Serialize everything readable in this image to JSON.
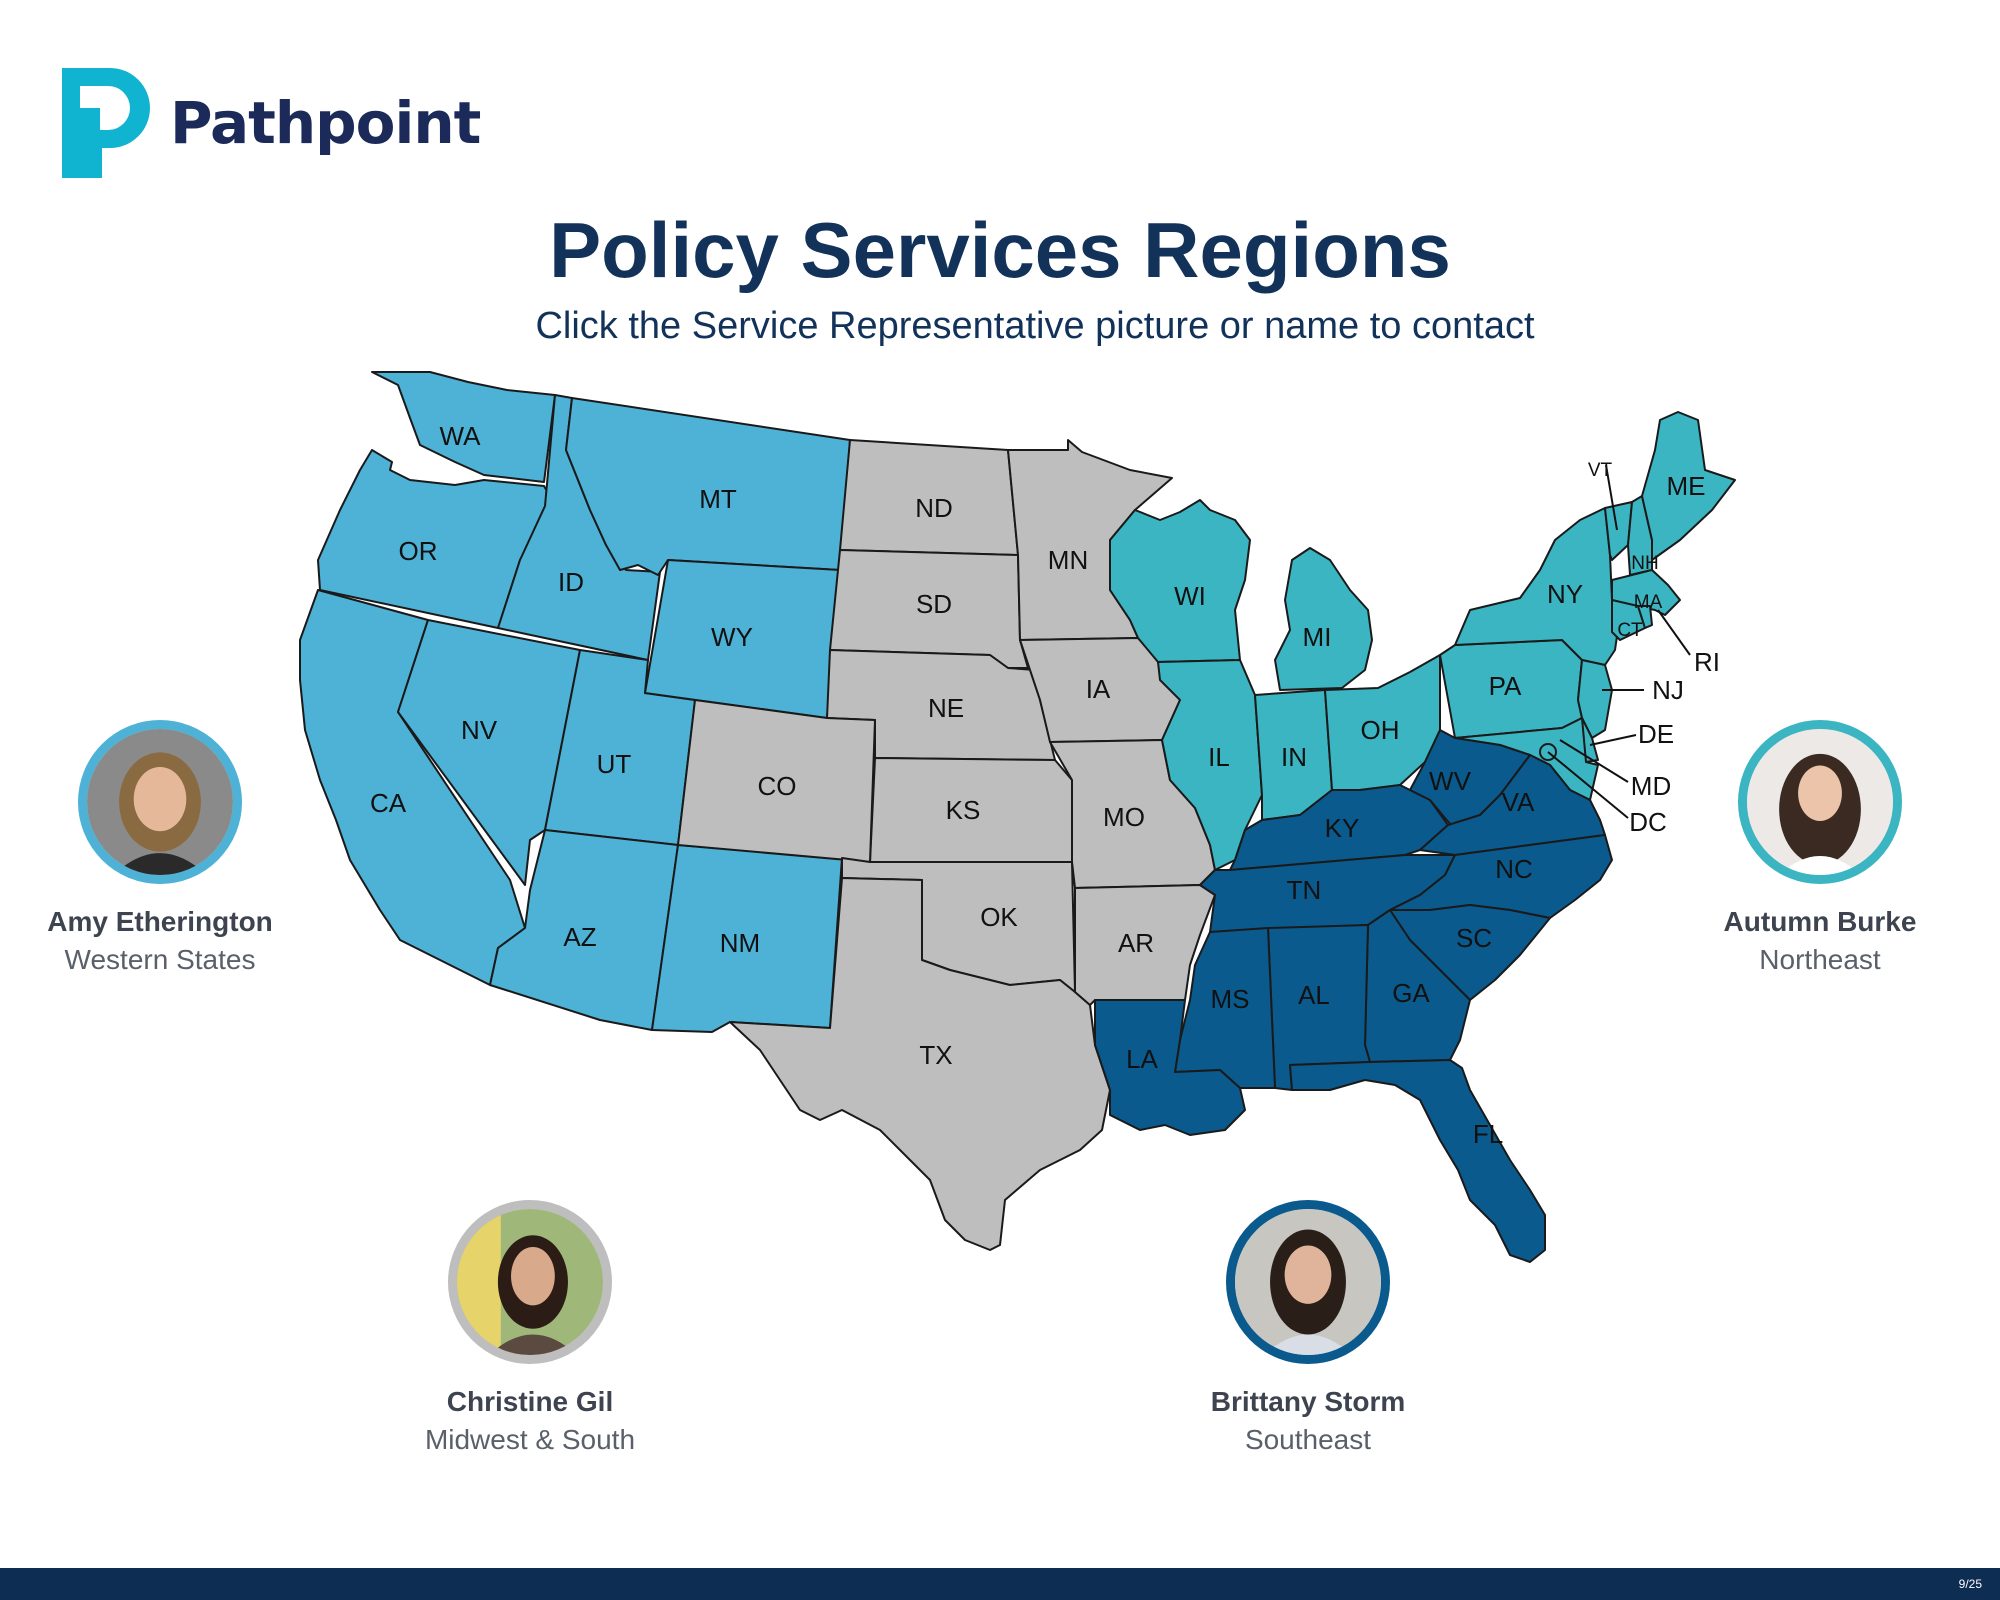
{
  "brand": {
    "name": "Pathpoint",
    "colors": {
      "primary": "#1c2a5a",
      "accent": "#10b4d0"
    }
  },
  "header": {
    "title": "Policy Services Regions",
    "subtitle": "Click the Service Representative picture or name to contact"
  },
  "regions": {
    "western": {
      "color": "#4eb1d6",
      "states": [
        "WA",
        "OR",
        "CA",
        "ID",
        "NV",
        "UT",
        "AZ",
        "MT",
        "WY",
        "NM"
      ]
    },
    "midwest_south": {
      "color": "#bebebe",
      "states": [
        "ND",
        "SD",
        "NE",
        "KS",
        "OK",
        "TX",
        "CO",
        "MN",
        "IA",
        "MO",
        "AR"
      ]
    },
    "northeast": {
      "color": "#3bb5c2",
      "states": [
        "WI",
        "MI",
        "IL",
        "IN",
        "OH",
        "PA",
        "NY",
        "VT",
        "NH",
        "ME",
        "MA",
        "RI",
        "CT",
        "NJ",
        "DE",
        "MD",
        "DC"
      ]
    },
    "southeast": {
      "color": "#0a5a8e",
      "states": [
        "KY",
        "WV",
        "VA",
        "TN",
        "NC",
        "SC",
        "GA",
        "AL",
        "MS",
        "LA",
        "FL"
      ]
    }
  },
  "map_labels": [
    "WA",
    "OR",
    "CA",
    "ID",
    "NV",
    "UT",
    "AZ",
    "MT",
    "WY",
    "NM",
    "ND",
    "SD",
    "NE",
    "KS",
    "OK",
    "TX",
    "CO",
    "MN",
    "IA",
    "MO",
    "AR",
    "WI",
    "MI",
    "IL",
    "IN",
    "OH",
    "PA",
    "NY",
    "VT",
    "NH",
    "ME",
    "MA",
    "RI",
    "CT",
    "NJ",
    "DE",
    "MD",
    "DC",
    "KY",
    "WV",
    "VA",
    "TN",
    "NC",
    "SC",
    "GA",
    "AL",
    "MS",
    "LA",
    "FL"
  ],
  "representatives": [
    {
      "name": "Amy Etherington",
      "region": "Western States",
      "ring_color": "#4eb1d6",
      "icon": "person-photo"
    },
    {
      "name": "Christine Gil",
      "region": "Midwest & South",
      "ring_color": "#bebebe",
      "icon": "person-photo"
    },
    {
      "name": "Brittany Storm",
      "region": "Southeast",
      "ring_color": "#0a5a8e",
      "icon": "person-photo"
    },
    {
      "name": "Autumn Burke",
      "region": "Northeast",
      "ring_color": "#3bb5c2",
      "icon": "person-photo"
    }
  ],
  "footer": {
    "page": "9/25"
  }
}
